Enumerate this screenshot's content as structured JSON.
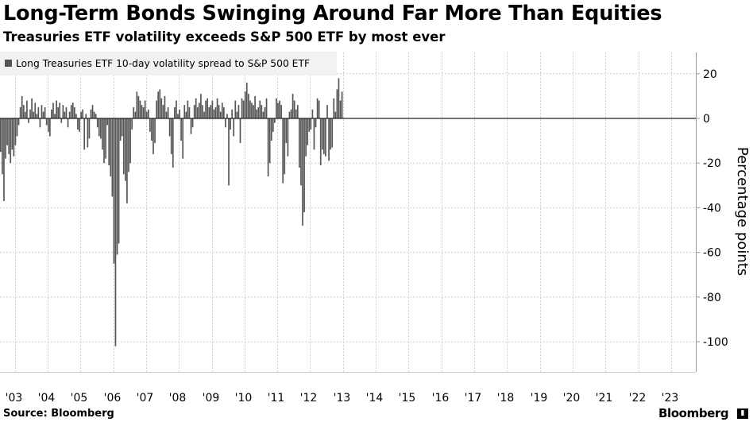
{
  "header": {
    "title": "Long-Term Bonds Swinging Around Far More Than Equities",
    "subtitle": "Treasuries ETF volatility exceeds S&P 500 ETF by most ever"
  },
  "footer": {
    "source": "Source: Bloomberg",
    "brand": "Bloomberg",
    "brand_icon_glyph": "▮"
  },
  "colors": {
    "bar": "#555555",
    "grid": "#cfcfcf",
    "axis": "#999999",
    "legend_bg": "#f2f2f2"
  },
  "chart_data": {
    "type": "bar",
    "title": "Long-Term Bonds Swinging Around Far More Than Equities",
    "subtitle": "Treasuries ETF volatility exceeds S&P 500 ETF by most ever",
    "legend": [
      "Long Treasuries ETF 10-day volatility spread to S&P 500 ETF"
    ],
    "ylabel": "Percentage points",
    "xlabel": "",
    "ylim": [
      -112,
      32
    ],
    "yticks": [
      20,
      0,
      -20,
      -40,
      -60,
      -80,
      -100
    ],
    "ytick_labels": [
      "20",
      "0",
      "-20",
      "-40",
      "-60",
      "-80",
      "-100"
    ],
    "xlim": [
      2002.55,
      2023.75
    ],
    "xticks": [
      2003,
      2004,
      2005,
      2006,
      2007,
      2008,
      2009,
      2010,
      2011,
      2012,
      2013,
      2014,
      2015,
      2016,
      2017,
      2018,
      2019,
      2020,
      2021,
      2022,
      2023
    ],
    "xtick_labels": [
      "'03",
      "'04",
      "'05",
      "'06",
      "'07",
      "'08",
      "'09",
      "'10",
      "'11",
      "'12",
      "'13",
      "'14",
      "'15",
      "'16",
      "'17",
      "'18",
      "'19",
      "'20",
      "'21",
      "'22",
      "'23"
    ],
    "legend_position": "top-left",
    "y_axis_position": "right",
    "grid": true,
    "series": [
      {
        "name": "Long Treasuries ETF 10-day volatility spread to S&P 500 ETF",
        "x_start": 2002.55,
        "x_step": 0.05,
        "values": [
          -15,
          -25,
          -37,
          -18,
          -12,
          -16,
          -20,
          -14,
          -17,
          -12,
          -8,
          -3,
          5,
          10,
          6,
          3,
          8,
          -2,
          4,
          9,
          3,
          7,
          2,
          5,
          -4,
          6,
          3,
          5,
          -3,
          -6,
          -8,
          4,
          7,
          2,
          8,
          5,
          7,
          -2,
          6,
          3,
          5,
          -4,
          3,
          6,
          7,
          5,
          2,
          -5,
          -6,
          3,
          4,
          -14,
          2,
          -13,
          -9,
          4,
          6,
          3,
          2,
          -4,
          -8,
          -9,
          -14,
          -20,
          -18,
          -3,
          -21,
          -26,
          -35,
          -65,
          -102,
          -61,
          -56,
          -10,
          -8,
          -25,
          -28,
          -38,
          -24,
          -20,
          -5,
          5,
          3,
          12,
          10,
          8,
          6,
          5,
          8,
          3,
          4,
          -6,
          -10,
          -16,
          -11,
          8,
          12,
          13,
          9,
          6,
          10,
          3,
          5,
          -8,
          -16,
          -22,
          5,
          8,
          2,
          4,
          -10,
          -18,
          6,
          3,
          8,
          5,
          -7,
          -4,
          6,
          9,
          5,
          7,
          11,
          6,
          3,
          8,
          9,
          5,
          6,
          8,
          4,
          5,
          9,
          6,
          3,
          7,
          5,
          -4,
          2,
          -30,
          -5,
          4,
          -8,
          8,
          3,
          6,
          -11,
          9,
          8,
          12,
          16,
          11,
          8,
          7,
          6,
          10,
          4,
          5,
          8,
          6,
          3,
          5,
          9,
          -26,
          -20,
          -10,
          -6,
          -2,
          9,
          7,
          8,
          6,
          -29,
          -25,
          -11,
          -17,
          3,
          4,
          11,
          8,
          4,
          6,
          -22,
          -30,
          -48,
          -42,
          -17,
          -12,
          -6,
          -5,
          4,
          -14,
          -4,
          9,
          8,
          -21,
          -14,
          -16,
          -17,
          6,
          -19,
          -14,
          -13,
          9,
          3,
          13,
          18,
          8,
          12
        ],
        "note": "Approximate values read from the chart; each value is the weekly extreme of the spread"
      }
    ]
  }
}
